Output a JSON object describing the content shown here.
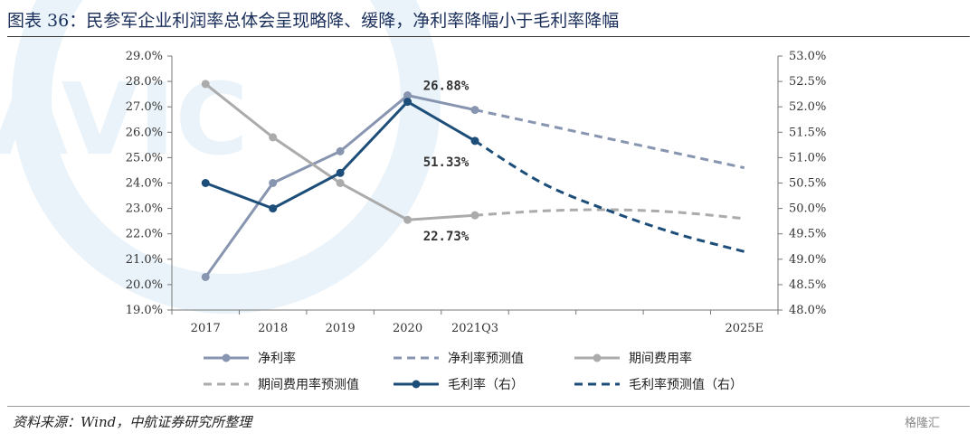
{
  "title": "图表 36：民参军企业利润率总体会呈现略降、缓降，净利率降幅小于毛利率降幅",
  "source": "资料来源：Wind，中航证券研究所整理",
  "brand": "格隆汇",
  "chart_data": {
    "type": "line",
    "categories": [
      "2017",
      "2018",
      "2019",
      "2020",
      "2021Q3",
      "",
      "",
      "",
      "2025E"
    ],
    "ylim": [
      19,
      29
    ],
    "y2lim": [
      48,
      53
    ],
    "y_ticks": [
      "19.0%",
      "20.0%",
      "21.0%",
      "22.0%",
      "23.0%",
      "24.0%",
      "25.0%",
      "26.0%",
      "27.0%",
      "28.0%",
      "29.0%"
    ],
    "y2_ticks": [
      "48.0%",
      "48.5%",
      "49.0%",
      "49.5%",
      "50.0%",
      "50.5%",
      "51.0%",
      "51.5%",
      "52.0%",
      "52.5%",
      "53.0%"
    ],
    "legend_position": "bottom",
    "grid": false,
    "series": [
      {
        "name": "净利率",
        "axis": "left",
        "style": "solid",
        "marker": true,
        "color": "#8895b0",
        "x": [
          0,
          1,
          2,
          3,
          4
        ],
        "values": [
          20.3,
          24.0,
          25.25,
          27.45,
          26.88
        ]
      },
      {
        "name": "净利率预测值",
        "axis": "left",
        "style": "dashed",
        "marker": false,
        "color": "#8895b0",
        "x": [
          4,
          8
        ],
        "values": [
          26.88,
          24.6
        ]
      },
      {
        "name": "期间费用率",
        "axis": "left",
        "style": "solid",
        "marker": true,
        "color": "#ababab",
        "x": [
          0,
          1,
          2,
          3,
          4
        ],
        "values": [
          27.9,
          25.8,
          24.0,
          22.55,
          22.73
        ]
      },
      {
        "name": "期间费用率预测值",
        "axis": "left",
        "style": "dashed",
        "marker": false,
        "color": "#ababab",
        "x": [
          4,
          5,
          6,
          7,
          8
        ],
        "values": [
          22.73,
          22.9,
          22.95,
          22.85,
          22.6
        ]
      },
      {
        "name": "毛利率（右）",
        "axis": "right",
        "style": "solid",
        "marker": true,
        "color": "#1d4e79",
        "x": [
          0,
          1,
          2,
          3,
          4
        ],
        "values": [
          50.5,
          50.0,
          50.7,
          52.1,
          51.33
        ]
      },
      {
        "name": "毛利率预测值（右）",
        "axis": "right",
        "style": "dashed",
        "marker": false,
        "color": "#1d4e79",
        "x": [
          4,
          5,
          6,
          7,
          8
        ],
        "values": [
          51.33,
          50.5,
          49.95,
          49.5,
          49.15
        ]
      }
    ],
    "annotations": [
      {
        "text": "26.88%",
        "series": 0,
        "point": 4,
        "dx": -32,
        "dy": -22
      },
      {
        "text": "51.33%",
        "series": 4,
        "point": 4,
        "dx": -32,
        "dy": 28
      },
      {
        "text": "22.73%",
        "series": 2,
        "point": 4,
        "dx": -32,
        "dy": 28
      }
    ]
  }
}
